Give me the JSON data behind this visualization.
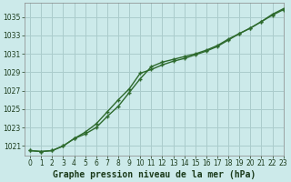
{
  "title": "Graphe pression niveau de la mer (hPa)",
  "background_color": "#cceaea",
  "grid_color": "#aacccc",
  "line_color": "#2d6a2d",
  "xlim": [
    -0.5,
    23
  ],
  "ylim": [
    1020.0,
    1036.5
  ],
  "xticks": [
    0,
    1,
    2,
    3,
    4,
    5,
    6,
    7,
    8,
    9,
    10,
    11,
    12,
    13,
    14,
    15,
    16,
    17,
    18,
    19,
    20,
    21,
    22,
    23
  ],
  "yticks": [
    1021,
    1023,
    1025,
    1027,
    1029,
    1031,
    1033,
    1035
  ],
  "series1_x": [
    0,
    1,
    2,
    3,
    4,
    5,
    6,
    7,
    8,
    9,
    10,
    11,
    12,
    13,
    14,
    15,
    16,
    17,
    18,
    19,
    20,
    21,
    22,
    23
  ],
  "series1_y": [
    1020.5,
    1020.4,
    1020.5,
    1021.0,
    1021.8,
    1022.5,
    1023.4,
    1024.7,
    1026.0,
    1027.2,
    1028.9,
    1029.3,
    1029.8,
    1030.2,
    1030.5,
    1030.9,
    1031.3,
    1031.8,
    1032.5,
    1033.2,
    1033.8,
    1034.5,
    1035.3,
    1035.9
  ],
  "series2_x": [
    0,
    1,
    2,
    3,
    4,
    5,
    6,
    7,
    8,
    9,
    10,
    11,
    12,
    13,
    14,
    15,
    16,
    17,
    18,
    19,
    20,
    21,
    22,
    23
  ],
  "series2_y": [
    1020.5,
    1020.4,
    1020.5,
    1021.0,
    1021.8,
    1022.3,
    1023.0,
    1024.2,
    1025.3,
    1026.8,
    1028.3,
    1029.6,
    1030.1,
    1030.4,
    1030.7,
    1031.0,
    1031.4,
    1031.9,
    1032.6,
    1033.2,
    1033.8,
    1034.5,
    1035.2,
    1035.8
  ],
  "title_fontsize": 7,
  "tick_fontsize": 5.5,
  "line_width": 1.0,
  "marker_size": 3.5,
  "marker_ew": 1.0
}
